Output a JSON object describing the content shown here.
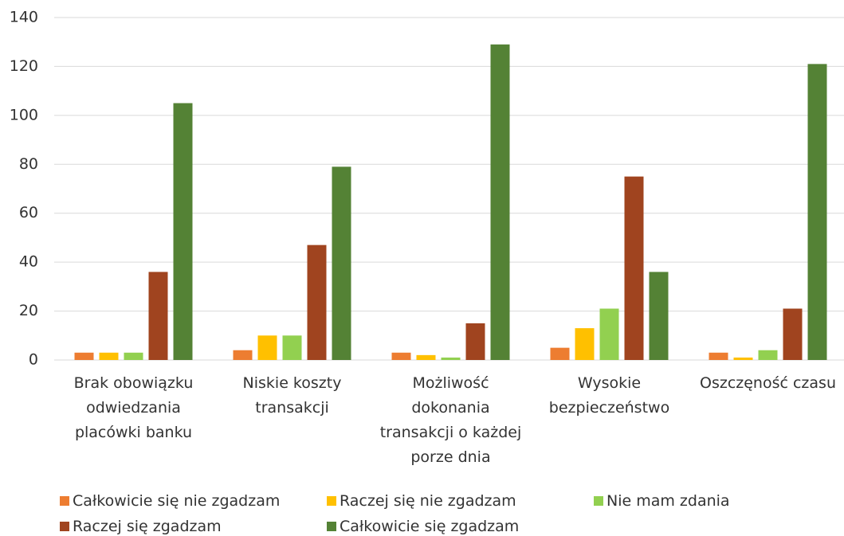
{
  "chart_data": {
    "type": "bar",
    "categories": [
      "Brak obowiązku odwiedzania placówki banku",
      "Niskie koszty transakcji",
      "Możliwość dokonania transakcji o każdej porze dnia",
      "Wysokie bezpieczeństwo",
      "Oszczęność czasu"
    ],
    "series": [
      {
        "name": "Całkowicie się nie zgadzam",
        "color": "#ed7d31",
        "values": [
          3,
          4,
          3,
          5,
          3
        ]
      },
      {
        "name": "Raczej się nie zgadzam",
        "color": "#ffc000",
        "values": [
          3,
          10,
          2,
          13,
          1
        ]
      },
      {
        "name": "Nie mam zdania",
        "color": "#92d050",
        "values": [
          3,
          10,
          1,
          21,
          4
        ]
      },
      {
        "name": "Raczej się zgadzam",
        "color": "#a0441f",
        "values": [
          36,
          47,
          15,
          75,
          21
        ]
      },
      {
        "name": "Całkowicie się zgadzam",
        "color": "#548235",
        "values": [
          105,
          79,
          129,
          36,
          121
        ]
      }
    ],
    "ylim": [
      0,
      140
    ],
    "yticks": [
      0,
      20,
      40,
      60,
      80,
      100,
      120,
      140
    ],
    "grid": true,
    "legend": "bottom"
  }
}
